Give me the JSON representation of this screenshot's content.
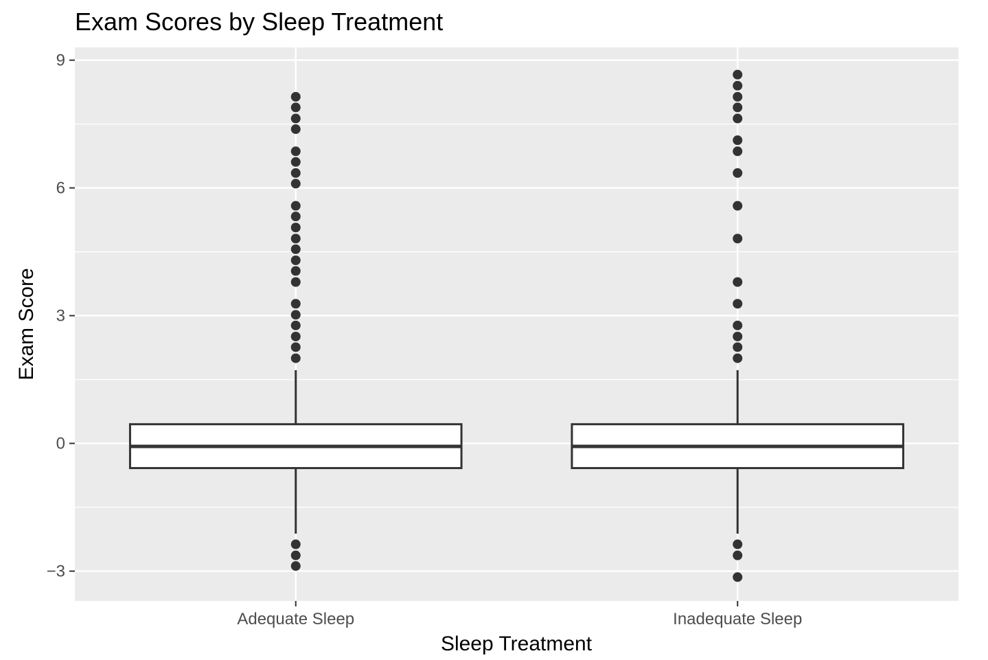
{
  "chart_data": {
    "type": "box",
    "title": "Exam Scores by Sleep Treatment",
    "xlabel": "Sleep Treatment",
    "ylabel": "Exam Score",
    "ylim": [
      -3.7,
      9.3
    ],
    "yticks": [
      -3,
      0,
      3,
      6,
      9
    ],
    "ytick_labels": [
      "−3",
      "0",
      "3",
      "6",
      "9"
    ],
    "grid": true,
    "categories": [
      "Adequate Sleep",
      "Inadequate Sleep"
    ],
    "boxes": [
      {
        "name": "Adequate Sleep",
        "q1": -0.58,
        "median": -0.07,
        "q3": 0.45,
        "whisker_low": -2.12,
        "whisker_high": 1.72,
        "outliers": [
          2.0,
          2.26,
          2.51,
          2.77,
          3.02,
          3.28,
          3.79,
          4.05,
          4.3,
          4.56,
          4.81,
          5.07,
          5.33,
          5.58,
          6.1,
          6.35,
          6.61,
          6.86,
          7.38,
          7.63,
          7.89,
          8.14,
          -2.37,
          -2.63,
          -2.88
        ]
      },
      {
        "name": "Inadequate Sleep",
        "q1": -0.58,
        "median": -0.07,
        "q3": 0.45,
        "whisker_low": -2.12,
        "whisker_high": 1.72,
        "outliers": [
          2.0,
          2.26,
          2.51,
          2.77,
          3.28,
          3.79,
          4.81,
          5.58,
          6.35,
          6.86,
          7.12,
          7.63,
          7.89,
          8.14,
          8.4,
          8.66,
          -2.37,
          -2.63,
          -3.14
        ]
      }
    ]
  }
}
